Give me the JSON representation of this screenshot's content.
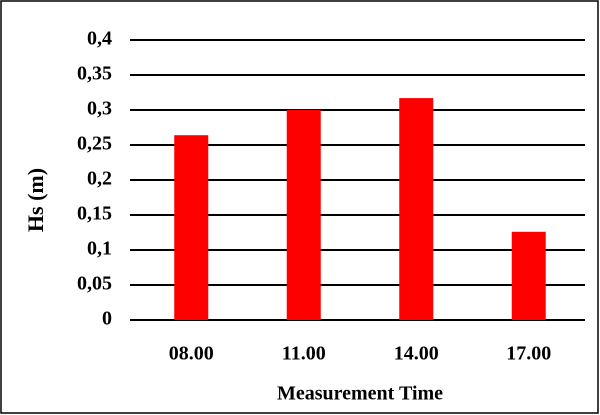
{
  "chart_data": {
    "type": "bar",
    "x_label": "Measurement Time",
    "y_label": "Hs (m)",
    "categories": [
      "08.00",
      "11.00",
      "14.00",
      "17.00"
    ],
    "values": [
      0.264,
      0.3,
      0.317,
      0.126
    ],
    "color": "#ff0000",
    "ylim": [
      0,
      0.4
    ],
    "yticks": [
      0,
      {
        "value": 0.05,
        "label": "0,05"
      },
      {
        "value": 0.1,
        "label": "0,1"
      },
      {
        "value": 0.15,
        "label": "0,15"
      },
      {
        "value": 0.2,
        "label": "0,2"
      },
      {
        "value": 0.25,
        "label": "0,25"
      },
      {
        "value": 0.3,
        "label": "0,3"
      },
      {
        "value": 0.35,
        "label": "0,35"
      },
      {
        "value": 0.4,
        "label": "0,4"
      }
    ],
    "grid": true
  }
}
